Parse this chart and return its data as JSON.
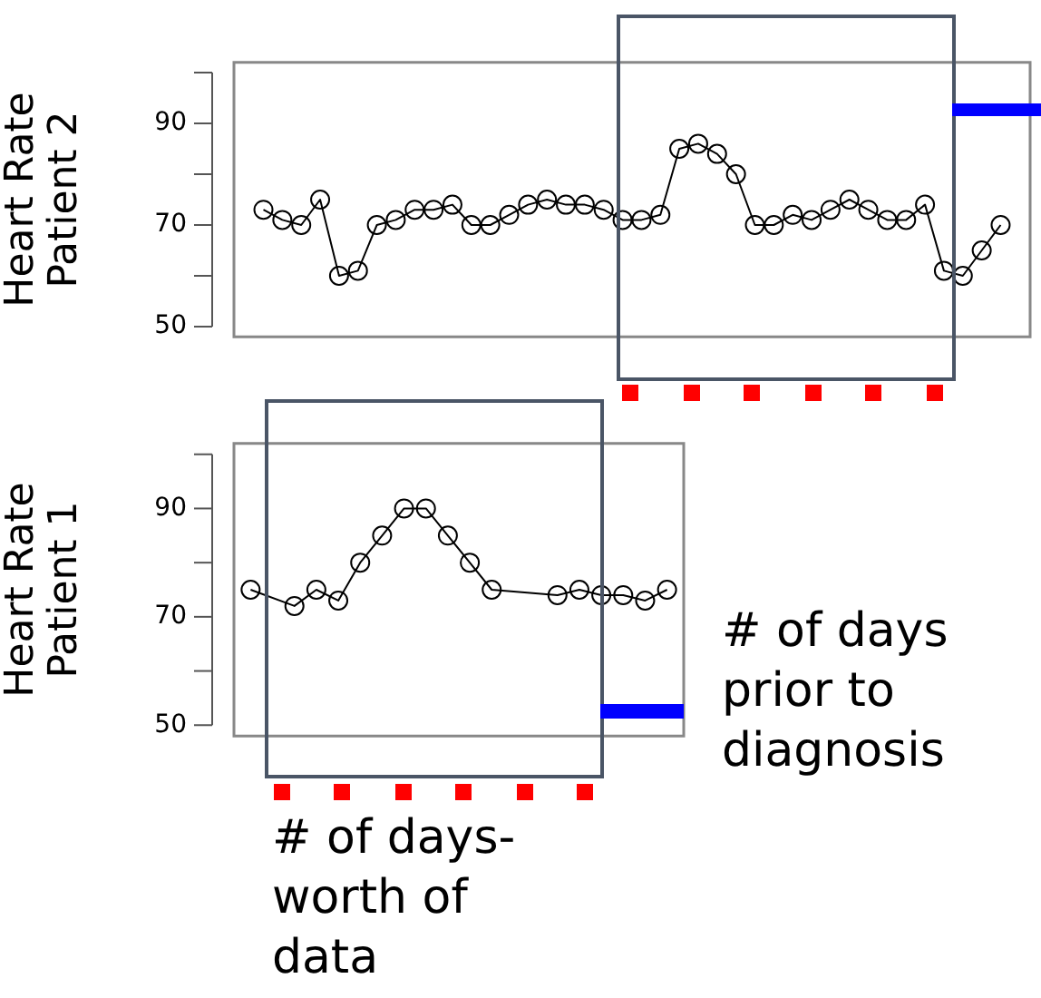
{
  "chart_data": [
    {
      "type": "line",
      "ylabel": "Heart Rate\nPatient 2",
      "categories": [
        null,
        null,
        null,
        null,
        null,
        null,
        null,
        null,
        null,
        null,
        null,
        null,
        null,
        null,
        null,
        null,
        null,
        null,
        null,
        null,
        null,
        null,
        null,
        null,
        null,
        null,
        null,
        null,
        null,
        null,
        null,
        null,
        null,
        null,
        null,
        null,
        null,
        null,
        null,
        null
      ],
      "ylim": [
        48,
        102
      ],
      "yticks": [
        50,
        {
          "value": 60,
          "label": null
        },
        70,
        {
          "value": 80,
          "label": null
        },
        90,
        {
          "value": 100,
          "label": null
        }
      ],
      "tick_labels": "y",
      "marker": "circle",
      "annotations": [
        "# of days prior to diagnosis"
      ],
      "series": [
        {
          "color": "#000000",
          "values": [
            73,
            71,
            70,
            75,
            60,
            61,
            70,
            71,
            73,
            73,
            74,
            70,
            70,
            72,
            74,
            75,
            74,
            74,
            73,
            71,
            71,
            72,
            85,
            86,
            84,
            80,
            70,
            70,
            72,
            71,
            73,
            75,
            73,
            71,
            71,
            74,
            61,
            60,
            65,
            70
          ]
        }
      ]
    },
    {
      "type": "line",
      "ylabel": "Heart Rate\nPatient 1",
      "categories": [
        null,
        null,
        null,
        null,
        null,
        null,
        null,
        null,
        null,
        null,
        null,
        null,
        null,
        null,
        null,
        null,
        null,
        null,
        null,
        null
      ],
      "ylim": [
        48,
        102
      ],
      "yticks": [
        50,
        {
          "value": 60,
          "label": null
        },
        70,
        {
          "value": 80,
          "label": null
        },
        90,
        {
          "value": 100,
          "label": null
        }
      ],
      "tick_labels": "y",
      "marker": "circle",
      "annotations": [
        "# of days-worth of data"
      ],
      "series": [
        {
          "color": "#000000",
          "values": [
            75,
            null,
            72,
            75,
            73,
            80,
            85,
            90,
            90,
            85,
            80,
            75,
            null,
            null,
            74,
            75,
            74,
            74,
            73,
            75
          ]
        }
      ]
    }
  ]
}
